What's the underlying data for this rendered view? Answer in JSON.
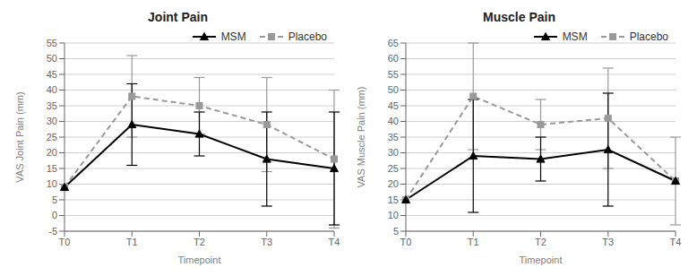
{
  "chart_data": [
    {
      "type": "line",
      "title": "Joint Pain",
      "x_label": "Timepoint",
      "y_label": "VAS Joint Pain (mm)",
      "categories": [
        "T0",
        "T1",
        "T2",
        "T3",
        "T4"
      ],
      "series": [
        {
          "name": "MSM",
          "color": "#000000",
          "marker": "triangle",
          "line_style": "solid",
          "values": [
            9,
            29,
            26,
            18,
            15
          ],
          "errors": [
            0,
            13,
            7,
            15,
            18
          ]
        },
        {
          "name": "Placebo",
          "color": "#999999",
          "marker": "square",
          "line_style": "dashed",
          "values": [
            9,
            38,
            35,
            29,
            18
          ],
          "errors": [
            0,
            13,
            9,
            15,
            22
          ]
        }
      ],
      "ylim": [
        -5,
        55
      ],
      "yticks": [
        -5,
        0,
        5,
        10,
        15,
        20,
        25,
        30,
        35,
        40,
        45,
        50,
        55
      ],
      "grid": true,
      "legend": "upper right"
    },
    {
      "type": "line",
      "title": "Muscle Pain",
      "x_label": "Timepoint",
      "y_label": "VAS Muscle Pain (mm)",
      "categories": [
        "T0",
        "T1",
        "T2",
        "T3",
        "T4"
      ],
      "series": [
        {
          "name": "MSM",
          "color": "#000000",
          "marker": "triangle",
          "line_style": "solid",
          "values": [
            15,
            29,
            28,
            31,
            21
          ],
          "errors": [
            0,
            18,
            7,
            18,
            0
          ]
        },
        {
          "name": "Placebo",
          "color": "#999999",
          "marker": "square",
          "line_style": "dashed",
          "values": [
            15,
            48,
            39,
            41,
            21
          ],
          "errors": [
            0,
            17,
            8,
            16,
            14
          ]
        }
      ],
      "ylim": [
        5,
        65
      ],
      "yticks": [
        5,
        10,
        15,
        20,
        25,
        30,
        35,
        40,
        45,
        50,
        55,
        60,
        65
      ],
      "grid": true,
      "legend": "upper right"
    }
  ]
}
